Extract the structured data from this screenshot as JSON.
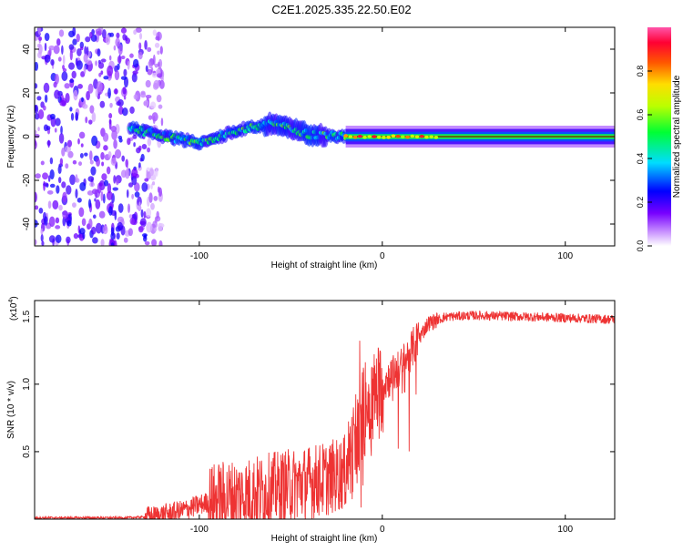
{
  "title": "C2E1.2025.335.22.50.E02",
  "chart_data": [
    {
      "type": "heatmap",
      "xlabel": "Height of straight line (km)",
      "ylabel": "Frequency (Hz)",
      "xlim": [
        -190,
        127
      ],
      "ylim": [
        -50,
        50
      ],
      "xticks": [
        -100,
        0,
        100
      ],
      "xtick_labels": [
        "-100",
        "0",
        "100"
      ],
      "yticks": [
        -40,
        -20,
        0,
        20,
        40
      ],
      "ytick_labels": [
        "-40",
        "-20",
        "0",
        "20",
        "40"
      ],
      "colorbar": {
        "label": "Normalized spectral amplitude",
        "range": [
          0,
          1
        ],
        "ticks": [
          0,
          0.2,
          0.4,
          0.6,
          0.8
        ],
        "tick_labels": [
          "0.0",
          "0.2",
          "0.4",
          "0.6",
          "0.8"
        ]
      },
      "regions": [
        {
          "name": "noise",
          "x_range": [
            -190,
            -120
          ],
          "f_range": [
            -50,
            50
          ],
          "amplitude": [
            0.05,
            0.25
          ]
        },
        {
          "name": "wandering-signal",
          "x_range": [
            -138,
            -20
          ],
          "f_center": [
            4,
            0,
            -3,
            3,
            6,
            1,
            0
          ],
          "amplitude": [
            0.3,
            0.6
          ]
        },
        {
          "name": "stable-line",
          "x_range": [
            -20,
            127
          ],
          "f_center": 0,
          "amplitude": [
            0.6,
            0.95
          ]
        }
      ]
    },
    {
      "type": "line",
      "xlabel": "Height of straight line (km)",
      "ylabel": "SNR (10 * v/v)",
      "y_multiplier": "(x10",
      "y_exponent": "4",
      "xlim": [
        -190,
        127
      ],
      "ylim": [
        0,
        1.62
      ],
      "xticks": [
        -100,
        0,
        100
      ],
      "xtick_labels": [
        "-100",
        "0",
        "100"
      ],
      "yticks": [
        0.5,
        1.0,
        1.5
      ],
      "ytick_labels": [
        "0.5",
        "1.0",
        "1.5"
      ],
      "color": "#ee3333",
      "trend_x": [
        -190,
        -140,
        -125,
        -110,
        -90,
        -75,
        -60,
        -45,
        -30,
        -20,
        -15,
        -10,
        0,
        10,
        18,
        25,
        35,
        50,
        80,
        127
      ],
      "trend_y": [
        0.01,
        0.01,
        0.02,
        0.06,
        0.15,
        0.18,
        0.22,
        0.26,
        0.3,
        0.35,
        0.55,
        0.8,
        1.0,
        1.12,
        1.3,
        1.45,
        1.5,
        1.51,
        1.5,
        1.48
      ]
    }
  ]
}
